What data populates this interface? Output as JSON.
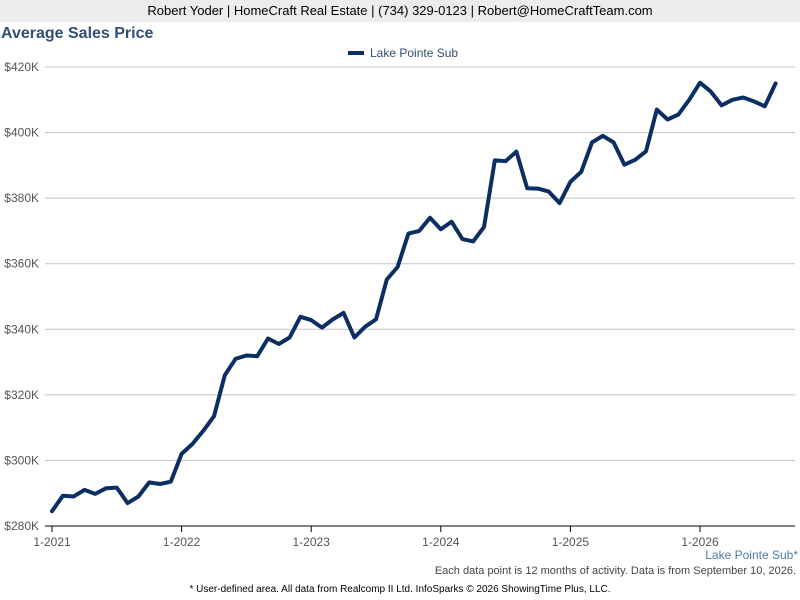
{
  "header": {
    "contact": "Robert Yoder | HomeCraft Real Estate | (734) 329-0123 | Robert@HomeCraftTeam.com"
  },
  "chart_data": {
    "type": "line",
    "title": "Average Sales Price",
    "xlabel": "",
    "ylabel": "",
    "ylim": [
      280000,
      420000
    ],
    "y_ticks": [
      280000,
      300000,
      320000,
      340000,
      360000,
      380000,
      400000,
      420000
    ],
    "y_tick_labels": [
      "$280K",
      "$300K",
      "$320K",
      "$340K",
      "$360K",
      "$380K",
      "$400K",
      "$420K"
    ],
    "x_tick_labels": [
      "1-2021",
      "1-2022",
      "1-2023",
      "1-2024",
      "1-2025",
      "1-2026"
    ],
    "grid": true,
    "legend_position": "top-center",
    "series": [
      {
        "name": "Lake Pointe Sub",
        "color": "#0b2f63",
        "x_start": "1-2021",
        "interval": "monthly",
        "values": [
          284500,
          289200,
          289000,
          291000,
          289800,
          291500,
          291700,
          287000,
          289000,
          293300,
          292800,
          293500,
          302000,
          305000,
          309000,
          313500,
          326000,
          331000,
          332000,
          331800,
          337200,
          335500,
          337500,
          343800,
          342800,
          340500,
          343000,
          345000,
          337500,
          340800,
          343000,
          355200,
          359000,
          369200,
          370000,
          374000,
          370500,
          372800,
          367500,
          366800,
          371200,
          391500,
          391300,
          394200,
          383000,
          382900,
          382000,
          378500,
          385000,
          388000,
          397000,
          399000,
          397000,
          390200,
          391700,
          394300,
          407000,
          404000,
          405500,
          410000,
          415200,
          412500,
          408300,
          410000,
          410700,
          409500,
          408000,
          415000
        ]
      }
    ]
  },
  "legend": {
    "label": "Lake Pointe Sub"
  },
  "notes": {
    "area_label": "Lake Pointe Sub*",
    "data_note": "Each data point is 12 months of activity. Data is from September 10, 2026.",
    "footer": "* User-defined area. All data from Realcomp II Ltd. InfoSparks © 2026 ShowingTime Plus, LLC."
  }
}
